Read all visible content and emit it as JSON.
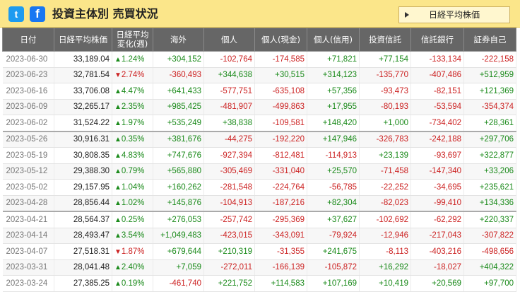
{
  "header": {
    "twitter_icon": "twitter-icon",
    "facebook_icon": "facebook-icon",
    "title": "投資主体別 売買状況",
    "nikkei_button": "日経平均株価"
  },
  "columns": [
    "日付",
    "日経平均株価",
    "日経平均\n変化(週)",
    "海外",
    "個人",
    "個人(現金)",
    "個人(信用)",
    "投資信託",
    "信託銀行",
    "証券自己"
  ],
  "rows": [
    {
      "date": "2023-06-30",
      "index": "33,189.04",
      "change": "1.24%",
      "up": true,
      "vals": [
        "+304,152",
        "-102,764",
        "-174,585",
        "+71,821",
        "+77,154",
        "-133,134",
        "-222,158"
      ]
    },
    {
      "date": "2023-06-23",
      "index": "32,781.54",
      "change": "2.74%",
      "up": false,
      "vals": [
        "-360,493",
        "+344,638",
        "+30,515",
        "+314,123",
        "-135,770",
        "-407,486",
        "+512,959"
      ]
    },
    {
      "date": "2023-06-16",
      "index": "33,706.08",
      "change": "4.47%",
      "up": true,
      "vals": [
        "+641,433",
        "-577,751",
        "-635,108",
        "+57,356",
        "-93,473",
        "-82,151",
        "+121,369"
      ]
    },
    {
      "date": "2023-06-09",
      "index": "32,265.17",
      "change": "2.35%",
      "up": true,
      "vals": [
        "+985,425",
        "-481,907",
        "-499,863",
        "+17,955",
        "-80,193",
        "-53,594",
        "-354,374"
      ]
    },
    {
      "date": "2023-06-02",
      "index": "31,524.22",
      "change": "1.97%",
      "up": true,
      "vals": [
        "+535,249",
        "+38,838",
        "-109,581",
        "+148,420",
        "+1,000",
        "-734,402",
        "+28,361"
      ]
    },
    {
      "date": "2023-05-26",
      "index": "30,916.31",
      "change": "0.35%",
      "up": true,
      "vals": [
        "+381,676",
        "-44,275",
        "-192,220",
        "+147,946",
        "-326,783",
        "-242,188",
        "+297,706"
      ],
      "sep": true
    },
    {
      "date": "2023-05-19",
      "index": "30,808.35",
      "change": "4.83%",
      "up": true,
      "vals": [
        "+747,676",
        "-927,394",
        "-812,481",
        "-114,913",
        "+23,139",
        "-93,697",
        "+322,877"
      ]
    },
    {
      "date": "2023-05-12",
      "index": "29,388.30",
      "change": "0.79%",
      "up": true,
      "vals": [
        "+565,880",
        "-305,469",
        "-331,040",
        "+25,570",
        "-71,458",
        "-147,340",
        "+33,206"
      ]
    },
    {
      "date": "2023-05-02",
      "index": "29,157.95",
      "change": "1.04%",
      "up": true,
      "vals": [
        "+160,262",
        "-281,548",
        "-224,764",
        "-56,785",
        "-22,252",
        "-34,695",
        "+235,621"
      ]
    },
    {
      "date": "2023-04-28",
      "index": "28,856.44",
      "change": "1.02%",
      "up": true,
      "vals": [
        "+145,876",
        "-104,913",
        "-187,216",
        "+82,304",
        "-82,023",
        "-99,410",
        "+134,336"
      ]
    },
    {
      "date": "2023-04-21",
      "index": "28,564.37",
      "change": "0.25%",
      "up": true,
      "vals": [
        "+276,053",
        "-257,742",
        "-295,369",
        "+37,627",
        "-102,692",
        "-62,292",
        "+220,337"
      ],
      "sep": true
    },
    {
      "date": "2023-04-14",
      "index": "28,493.47",
      "change": "3.54%",
      "up": true,
      "vals": [
        "+1,049,483",
        "-423,015",
        "-343,091",
        "-79,924",
        "-12,946",
        "-217,043",
        "-307,822"
      ]
    },
    {
      "date": "2023-04-07",
      "index": "27,518.31",
      "change": "1.87%",
      "up": false,
      "vals": [
        "+679,644",
        "+210,319",
        "-31,355",
        "+241,675",
        "-8,113",
        "-403,216",
        "-498,656"
      ]
    },
    {
      "date": "2023-03-31",
      "index": "28,041.48",
      "change": "2.40%",
      "up": true,
      "vals": [
        "+7,059",
        "-272,011",
        "-166,139",
        "-105,872",
        "+16,292",
        "-18,027",
        "+404,322"
      ]
    },
    {
      "date": "2023-03-24",
      "index": "27,385.25",
      "change": "0.19%",
      "up": true,
      "vals": [
        "-461,740",
        "+221,752",
        "+114,583",
        "+107,169",
        "+10,419",
        "+20,569",
        "+97,700"
      ]
    }
  ],
  "colors": {
    "positive": "#1a8a1a",
    "negative": "#cc2222",
    "header_bg": "#666666",
    "topbar_bg": "#fbe68a"
  }
}
